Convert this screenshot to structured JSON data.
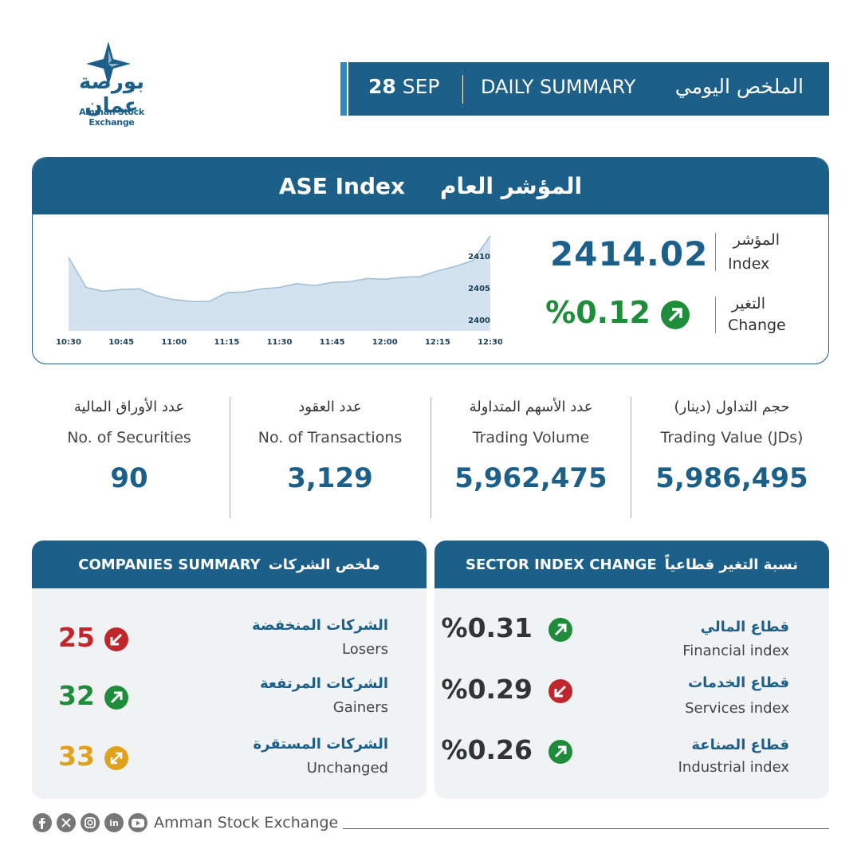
{
  "header": {
    "logo_ar": "بورصة عمان",
    "logo_en": "Amman Stock Exchange",
    "date_day": "28",
    "date_month": "SEP",
    "title_en": "DAILY SUMMARY",
    "title_ar": "الملخص اليومي"
  },
  "index": {
    "title_en": "ASE Index",
    "title_ar": "المؤشر العام",
    "value_label_ar": "المؤشر",
    "value_label_en": "Index",
    "value": "2414.02",
    "change_label_ar": "التغير",
    "change_label_en": "Change",
    "change": "%0.12"
  },
  "chart_data": {
    "type": "area",
    "x": [
      "10:30",
      null,
      null,
      "10:45",
      null,
      null,
      "11:00",
      null,
      null,
      "11:15",
      null,
      null,
      "11:30",
      null,
      null,
      "11:45",
      null,
      null,
      "12:00",
      null,
      null,
      "12:15",
      null,
      null,
      "12:30"
    ],
    "values": [
      2410.5,
      2405.8,
      2405.2,
      2405.5,
      2405.6,
      2404.5,
      2403.9,
      2403.6,
      2403.6,
      2405.0,
      2405.1,
      2405.6,
      2405.8,
      2406.4,
      2406.1,
      2406.6,
      2406.7,
      2407.2,
      2407.1,
      2407.4,
      2407.5,
      2408.4,
      2409.1,
      2410.0,
      2413.9
    ],
    "color": "#d3e2ee",
    "line_color": "#9cbdd5",
    "ylim": [
      2399,
      2414.5
    ],
    "yticks": [
      2400,
      2405,
      2410
    ]
  },
  "stats": [
    {
      "label_ar": "حجم التداول (دينار)",
      "label_en": "Trading Value (JDs)",
      "value": "5,986,495"
    },
    {
      "label_ar": "عدد الأسهم المتداولة",
      "label_en": "Trading Volume",
      "value": "5,962,475"
    },
    {
      "label_ar": "عدد العقود",
      "label_en": "No. of Transactions",
      "value": "3,129"
    },
    {
      "label_ar": "عدد الأوراق المالية",
      "label_en": "No. of Securities",
      "value": "90"
    }
  ],
  "sectors": {
    "title_en": "SECTOR INDEX CHANGE",
    "title_ar": "نسبة التغير قطاعياً",
    "rows": [
      {
        "name_ar": "قطاع المالي",
        "name_en": "Financial index",
        "value": "%0.31"
      },
      {
        "name_ar": "قطاع الخدمات",
        "name_en": "Services index",
        "value": "%0.29"
      },
      {
        "name_ar": "قطاع الصناعة",
        "name_en": "Industrial index",
        "value": "%0.26"
      }
    ]
  },
  "companies": {
    "title_en": "COMPANIES SUMMARY",
    "title_ar": "ملخص الشركات",
    "rows": [
      {
        "name_ar": "الشركات المنخفضة",
        "name_en": "Losers",
        "value": "25"
      },
      {
        "name_ar": "الشركات المرتفعة",
        "name_en": "Gainers",
        "value": "32"
      },
      {
        "name_ar": "الشركات المستقرة",
        "name_en": "Unchanged",
        "value": "33"
      }
    ]
  },
  "footer": {
    "text": "Amman Stock Exchange"
  }
}
